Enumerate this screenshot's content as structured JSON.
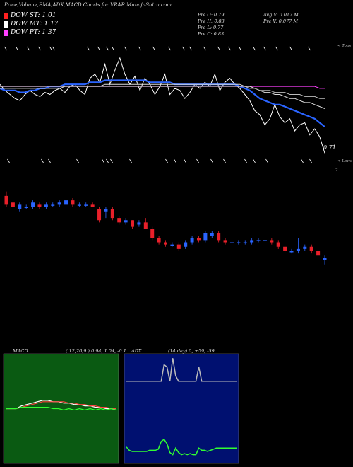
{
  "title": "Price,Volume,EMA,ADX,MACD Charts for VRAR MunafaSutra.com",
  "legend": [
    {
      "label": "DOW ST: 1.01",
      "color": "#ff2020"
    },
    {
      "label": "DOW MT: 1.17",
      "color": "#ffffff"
    },
    {
      "label": "DOW PT: 1.37",
      "color": "#ff40ff"
    }
  ],
  "info": {
    "prev_open": "Pre  O: 0.79",
    "prev_high": "Pre  H: 0.83",
    "prev_low": "Pre  L: 0.77",
    "prev_close": "Pre  C: 0.83",
    "avg_volume": "Avg V: 0.017 M",
    "prev_volume": "Pre  V: 0.077 M"
  },
  "labels": {
    "tops": "< Tops",
    "lows": "< Lows",
    "last_price": "0.71",
    "scale_mark": "2"
  },
  "colors": {
    "up": "#2a64ff",
    "down": "#e8202a",
    "macd_bg": "#0a5a12",
    "adx_bg": "#001070"
  },
  "chart_data": [
    {
      "type": "line",
      "panel": "price-ema",
      "series": [
        {
          "color": "#ffffff",
          "values": [
            1.05,
            1.02,
            1.0,
            0.98,
            0.97,
            1.0,
            1.02,
            1.0,
            0.99,
            1.01,
            1.0,
            1.02,
            1.03,
            1.01,
            1.04,
            1.05,
            1.02,
            1.0,
            1.08,
            1.1,
            1.06,
            1.15,
            1.05,
            1.12,
            1.18,
            1.1,
            1.05,
            1.09,
            1.02,
            1.08,
            1.05,
            1.0,
            1.04,
            1.1,
            1.0,
            1.03,
            1.02,
            0.98,
            1.01,
            1.05,
            1.03,
            1.06,
            1.04,
            1.1,
            1.02,
            1.06,
            1.08,
            1.05,
            1.03,
            1.0,
            0.97,
            0.92,
            0.9,
            0.85,
            0.88,
            0.95,
            0.89,
            0.86,
            0.88,
            0.82,
            0.85,
            0.86,
            0.8,
            0.83,
            0.79,
            0.71
          ]
        },
        {
          "color": "#2a64ff",
          "values": [
            1.03,
            1.02,
            1.02,
            1.02,
            1.01,
            1.01,
            1.02,
            1.02,
            1.03,
            1.03,
            1.04,
            1.04,
            1.04,
            1.05,
            1.05,
            1.05,
            1.05,
            1.05,
            1.06,
            1.06,
            1.06,
            1.07,
            1.07,
            1.07,
            1.07,
            1.07,
            1.07,
            1.07,
            1.07,
            1.07,
            1.06,
            1.06,
            1.06,
            1.06,
            1.06,
            1.05,
            1.05,
            1.05,
            1.05,
            1.05,
            1.05,
            1.05,
            1.05,
            1.05,
            1.05,
            1.05,
            1.05,
            1.05,
            1.04,
            1.03,
            1.02,
            1.0,
            0.98,
            0.97,
            0.96,
            0.95,
            0.95,
            0.94,
            0.93,
            0.92,
            0.91,
            0.9,
            0.89,
            0.88,
            0.86,
            0.84
          ]
        },
        {
          "color": "#ff40ff",
          "values": [
            1.04,
            1.04,
            1.04,
            1.04,
            1.04,
            1.04,
            1.04,
            1.04,
            1.04,
            1.04,
            1.04,
            1.04,
            1.04,
            1.04,
            1.04,
            1.04,
            1.04,
            1.04,
            1.04,
            1.04,
            1.04,
            1.04,
            1.04,
            1.04,
            1.04,
            1.04,
            1.04,
            1.04,
            1.04,
            1.04,
            1.04,
            1.04,
            1.04,
            1.04,
            1.04,
            1.04,
            1.04,
            1.04,
            1.04,
            1.04,
            1.04,
            1.04,
            1.04,
            1.04,
            1.04,
            1.04,
            1.04,
            1.04,
            1.04,
            1.04,
            1.04,
            1.04,
            1.04,
            1.04,
            1.04,
            1.04,
            1.04,
            1.04,
            1.04,
            1.04,
            1.04,
            1.04,
            1.04,
            1.04,
            1.03,
            1.03
          ]
        },
        {
          "color": "#dddddd",
          "values": [
            1.03,
            1.03,
            1.03,
            1.03,
            1.03,
            1.03,
            1.03,
            1.03,
            1.03,
            1.03,
            1.03,
            1.03,
            1.03,
            1.04,
            1.04,
            1.04,
            1.04,
            1.04,
            1.04,
            1.04,
            1.04,
            1.05,
            1.05,
            1.05,
            1.05,
            1.05,
            1.05,
            1.05,
            1.05,
            1.05,
            1.05,
            1.05,
            1.05,
            1.05,
            1.05,
            1.05,
            1.05,
            1.05,
            1.05,
            1.05,
            1.05,
            1.05,
            1.05,
            1.05,
            1.05,
            1.05,
            1.05,
            1.05,
            1.05,
            1.04,
            1.04,
            1.03,
            1.02,
            1.01,
            1.01,
            1.0,
            1.0,
            0.99,
            0.98,
            0.98,
            0.97,
            0.96,
            0.96,
            0.95,
            0.94,
            0.93
          ]
        },
        {
          "color": "#bbbbbb",
          "values": [
            1.04,
            1.04,
            1.04,
            1.04,
            1.04,
            1.04,
            1.04,
            1.04,
            1.04,
            1.04,
            1.04,
            1.04,
            1.04,
            1.04,
            1.04,
            1.04,
            1.04,
            1.04,
            1.04,
            1.04,
            1.04,
            1.04,
            1.04,
            1.04,
            1.04,
            1.04,
            1.04,
            1.04,
            1.04,
            1.04,
            1.04,
            1.04,
            1.04,
            1.04,
            1.04,
            1.04,
            1.04,
            1.04,
            1.04,
            1.04,
            1.04,
            1.04,
            1.04,
            1.04,
            1.04,
            1.04,
            1.04,
            1.04,
            1.04,
            1.04,
            1.03,
            1.03,
            1.02,
            1.02,
            1.02,
            1.01,
            1.01,
            1.01,
            1.0,
            1.0,
            1.0,
            0.99,
            0.99,
            0.99,
            0.98,
            0.98
          ]
        }
      ],
      "ylim": [
        0.68,
        1.25
      ]
    },
    {
      "type": "candlestick",
      "panel": "candles",
      "candles": [
        {
          "o": 1.05,
          "h": 1.07,
          "l": 1.0,
          "c": 1.01
        },
        {
          "o": 1.02,
          "h": 1.03,
          "l": 0.98,
          "c": 1.0
        },
        {
          "o": 0.99,
          "h": 1.02,
          "l": 0.98,
          "c": 1.01
        },
        {
          "o": 1.0,
          "h": 1.01,
          "l": 0.99,
          "c": 1.0
        },
        {
          "o": 1.0,
          "h": 1.03,
          "l": 0.99,
          "c": 1.02
        },
        {
          "o": 1.01,
          "h": 1.02,
          "l": 0.99,
          "c": 1.0
        },
        {
          "o": 1.0,
          "h": 1.02,
          "l": 0.99,
          "c": 1.01
        },
        {
          "o": 1.01,
          "h": 1.02,
          "l": 1.0,
          "c": 1.01
        },
        {
          "o": 1.01,
          "h": 1.03,
          "l": 1.0,
          "c": 1.02
        },
        {
          "o": 1.01,
          "h": 1.04,
          "l": 1.0,
          "c": 1.03
        },
        {
          "o": 1.03,
          "h": 1.04,
          "l": 1.0,
          "c": 1.01
        },
        {
          "o": 1.01,
          "h": 1.02,
          "l": 1.0,
          "c": 1.01
        },
        {
          "o": 1.01,
          "h": 1.02,
          "l": 1.0,
          "c": 1.01
        },
        {
          "o": 1.01,
          "h": 1.02,
          "l": 1.0,
          "c": 1.0
        },
        {
          "o": 0.99,
          "h": 1.0,
          "l": 0.93,
          "c": 0.94
        },
        {
          "o": 0.98,
          "h": 1.0,
          "l": 0.95,
          "c": 0.99
        },
        {
          "o": 0.99,
          "h": 1.0,
          "l": 0.94,
          "c": 0.95
        },
        {
          "o": 0.95,
          "h": 0.96,
          "l": 0.92,
          "c": 0.93
        },
        {
          "o": 0.93,
          "h": 0.95,
          "l": 0.92,
          "c": 0.94
        },
        {
          "o": 0.94,
          "h": 0.94,
          "l": 0.9,
          "c": 0.91
        },
        {
          "o": 0.92,
          "h": 0.94,
          "l": 0.91,
          "c": 0.93
        },
        {
          "o": 0.93,
          "h": 0.95,
          "l": 0.9,
          "c": 0.9
        },
        {
          "o": 0.9,
          "h": 0.91,
          "l": 0.85,
          "c": 0.86
        },
        {
          "o": 0.86,
          "h": 0.87,
          "l": 0.83,
          "c": 0.84
        },
        {
          "o": 0.84,
          "h": 0.85,
          "l": 0.82,
          "c": 0.83
        },
        {
          "o": 0.83,
          "h": 0.84,
          "l": 0.82,
          "c": 0.83
        },
        {
          "o": 0.83,
          "h": 0.84,
          "l": 0.8,
          "c": 0.81
        },
        {
          "o": 0.82,
          "h": 0.85,
          "l": 0.81,
          "c": 0.84
        },
        {
          "o": 0.84,
          "h": 0.87,
          "l": 0.83,
          "c": 0.86
        },
        {
          "o": 0.86,
          "h": 0.87,
          "l": 0.84,
          "c": 0.85
        },
        {
          "o": 0.85,
          "h": 0.89,
          "l": 0.84,
          "c": 0.88
        },
        {
          "o": 0.87,
          "h": 0.89,
          "l": 0.86,
          "c": 0.88
        },
        {
          "o": 0.88,
          "h": 0.89,
          "l": 0.84,
          "c": 0.85
        },
        {
          "o": 0.85,
          "h": 0.86,
          "l": 0.83,
          "c": 0.84
        },
        {
          "o": 0.84,
          "h": 0.85,
          "l": 0.83,
          "c": 0.84
        },
        {
          "o": 0.84,
          "h": 0.85,
          "l": 0.83,
          "c": 0.84
        },
        {
          "o": 0.84,
          "h": 0.85,
          "l": 0.83,
          "c": 0.84
        },
        {
          "o": 0.84,
          "h": 0.86,
          "l": 0.83,
          "c": 0.85
        },
        {
          "o": 0.85,
          "h": 0.86,
          "l": 0.84,
          "c": 0.85
        },
        {
          "o": 0.85,
          "h": 0.86,
          "l": 0.84,
          "c": 0.85
        },
        {
          "o": 0.85,
          "h": 0.86,
          "l": 0.83,
          "c": 0.84
        },
        {
          "o": 0.84,
          "h": 0.85,
          "l": 0.81,
          "c": 0.82
        },
        {
          "o": 0.82,
          "h": 0.83,
          "l": 0.79,
          "c": 0.8
        },
        {
          "o": 0.8,
          "h": 0.81,
          "l": 0.79,
          "c": 0.8
        },
        {
          "o": 0.8,
          "h": 0.86,
          "l": 0.79,
          "c": 0.81
        },
        {
          "o": 0.81,
          "h": 0.83,
          "l": 0.8,
          "c": 0.82
        },
        {
          "o": 0.82,
          "h": 0.83,
          "l": 0.79,
          "c": 0.8
        },
        {
          "o": 0.8,
          "h": 0.81,
          "l": 0.77,
          "c": 0.78
        },
        {
          "o": 0.76,
          "h": 0.78,
          "l": 0.74,
          "c": 0.77
        }
      ],
      "ylim": [
        0.72,
        1.12
      ]
    },
    {
      "type": "line",
      "panel": "macd",
      "title": "MACD",
      "params": "( 12,26,9 ) 0.94, 1.04, -0.1",
      "series": [
        {
          "color": "#ffffff",
          "values": [
            0.0,
            0.0,
            0.0,
            0.02,
            0.03,
            0.04,
            0.05,
            0.06,
            0.06,
            0.05,
            0.05,
            0.04,
            0.04,
            0.03,
            0.03,
            0.02,
            0.02,
            0.01,
            0.01,
            0.0,
            0.0,
            -0.01
          ]
        },
        {
          "color": "#ff4040",
          "values": [
            0.0,
            0.0,
            0.0,
            0.01,
            0.02,
            0.03,
            0.04,
            0.05,
            0.05,
            0.05,
            0.05,
            0.05,
            0.04,
            0.04,
            0.03,
            0.03,
            0.02,
            0.02,
            0.01,
            0.01,
            0.0,
            0.0
          ]
        },
        {
          "color": "#30ff30",
          "values": [
            0.0,
            0.0,
            0.0,
            0.01,
            0.01,
            0.01,
            0.01,
            0.01,
            0.01,
            0.0,
            0.0,
            -0.01,
            0.0,
            -0.01,
            0.0,
            -0.01,
            0.0,
            -0.01,
            0.0,
            -0.01,
            0.0,
            -0.01
          ]
        }
      ],
      "ylim": [
        -0.4,
        0.4
      ]
    },
    {
      "type": "line",
      "panel": "adx",
      "title": "ADX",
      "params": "(14 day) 0, +59, -59",
      "series": [
        {
          "color": "#bbbbbb",
          "values": [
            75,
            75,
            75,
            75,
            75,
            75,
            75,
            75,
            75,
            75,
            75,
            75,
            75,
            90,
            88,
            75,
            96,
            80,
            75,
            75,
            75,
            75,
            75,
            75,
            75,
            88,
            75,
            75,
            75,
            75,
            75,
            75,
            75,
            75,
            75,
            75,
            75,
            75,
            75
          ]
        },
        {
          "color": "#30ff30",
          "values": [
            15,
            12,
            11,
            11,
            11,
            11,
            11,
            11,
            12,
            12,
            12,
            13,
            20,
            22,
            18,
            10,
            8,
            14,
            10,
            8,
            9,
            8,
            9,
            8,
            8,
            14,
            12,
            12,
            11,
            12,
            13,
            14,
            14,
            14,
            14,
            14,
            14,
            14,
            14
          ]
        }
      ],
      "ylim": [
        0,
        100
      ]
    }
  ]
}
